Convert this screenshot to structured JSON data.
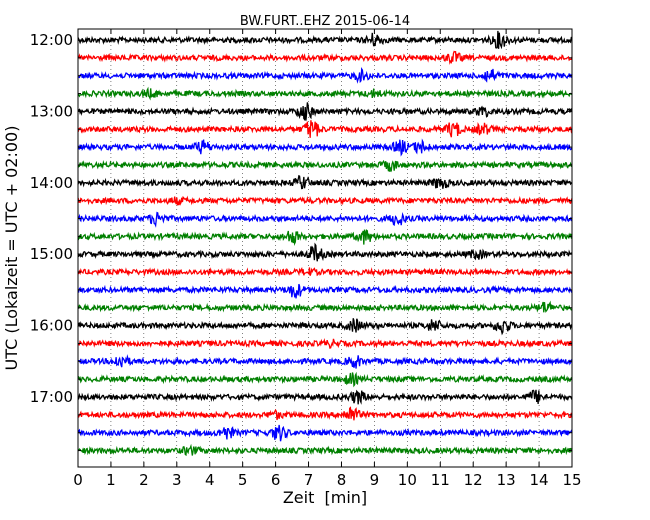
{
  "chart_data": {
    "type": "line",
    "title": "BW.FURT..EHZ 2015-06-14",
    "xlabel": "Zeit  [min]",
    "ylabel": "UTC (Lokalzeit = UTC + 02:00)",
    "xlim": [
      0,
      15
    ],
    "x_ticks": [
      "0",
      "1",
      "2",
      "3",
      "4",
      "5",
      "6",
      "7",
      "8",
      "9",
      "10",
      "11",
      "12",
      "13",
      "14",
      "15"
    ],
    "y_ticks": [
      "12:00",
      "13:00",
      "14:00",
      "15:00",
      "16:00",
      "17:00"
    ],
    "trace_interval_min": 15,
    "trace_colors": [
      "#000000",
      "#ff0000",
      "#0000ff",
      "#008000"
    ],
    "grid": true,
    "traces": [
      {
        "start": "12:00",
        "bursts": [
          [
            9.0,
            1.0
          ],
          [
            12.8,
            1.3
          ]
        ]
      },
      {
        "start": "12:15",
        "bursts": [
          [
            11.4,
            0.8
          ]
        ]
      },
      {
        "start": "12:30",
        "bursts": [
          [
            8.6,
            0.8
          ],
          [
            12.5,
            1.0
          ]
        ]
      },
      {
        "start": "12:45",
        "bursts": [
          [
            2.2,
            0.5
          ],
          [
            9.0,
            0.5
          ]
        ]
      },
      {
        "start": "13:00",
        "bursts": [
          [
            6.9,
            1.4
          ],
          [
            12.3,
            0.7
          ]
        ]
      },
      {
        "start": "13:15",
        "bursts": [
          [
            7.1,
            1.6
          ],
          [
            11.4,
            1.2
          ],
          [
            12.3,
            0.8
          ]
        ]
      },
      {
        "start": "13:30",
        "bursts": [
          [
            3.8,
            1.0
          ],
          [
            9.8,
            1.0
          ],
          [
            10.4,
            0.9
          ]
        ]
      },
      {
        "start": "13:45",
        "bursts": [
          [
            9.5,
            0.8
          ]
        ]
      },
      {
        "start": "14:00",
        "bursts": [
          [
            6.8,
            1.0
          ],
          [
            11.0,
            0.9
          ]
        ]
      },
      {
        "start": "14:15",
        "bursts": [
          [
            3.0,
            0.4
          ]
        ]
      },
      {
        "start": "14:30",
        "bursts": [
          [
            2.4,
            1.0
          ],
          [
            9.7,
            1.0
          ]
        ]
      },
      {
        "start": "14:45",
        "bursts": [
          [
            6.5,
            1.0
          ],
          [
            8.7,
            1.1
          ]
        ]
      },
      {
        "start": "15:00",
        "bursts": [
          [
            7.2,
            1.4
          ],
          [
            12.1,
            0.6
          ]
        ]
      },
      {
        "start": "15:15",
        "bursts": [
          [
            7.0,
            0.4
          ]
        ]
      },
      {
        "start": "15:30",
        "bursts": [
          [
            6.6,
            1.2
          ]
        ]
      },
      {
        "start": "15:45",
        "bursts": [
          [
            14.2,
            0.8
          ]
        ]
      },
      {
        "start": "16:00",
        "bursts": [
          [
            8.4,
            1.0
          ],
          [
            10.8,
            0.9
          ],
          [
            12.9,
            1.2
          ]
        ]
      },
      {
        "start": "16:15",
        "bursts": [
          [
            7.7,
            0.4
          ]
        ]
      },
      {
        "start": "16:30",
        "bursts": [
          [
            1.3,
            1.0
          ],
          [
            8.4,
            0.9
          ]
        ]
      },
      {
        "start": "16:45",
        "bursts": [
          [
            8.3,
            0.8
          ]
        ]
      },
      {
        "start": "17:00",
        "bursts": [
          [
            8.5,
            1.0
          ],
          [
            13.9,
            1.0
          ]
        ]
      },
      {
        "start": "17:15",
        "bursts": [
          [
            8.3,
            1.3
          ],
          [
            6.0,
            0.5
          ]
        ]
      },
      {
        "start": "17:30",
        "bursts": [
          [
            4.5,
            1.0
          ],
          [
            6.1,
            1.2
          ]
        ]
      },
      {
        "start": "17:45",
        "bursts": [
          [
            3.4,
            0.6
          ]
        ]
      }
    ]
  }
}
